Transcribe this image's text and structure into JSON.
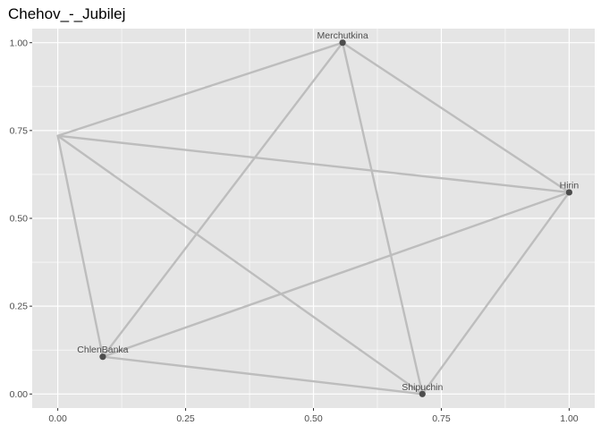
{
  "chart_data": {
    "type": "network",
    "title": "Chehov_-_Jubilej",
    "xlabel": "",
    "ylabel": "",
    "xlim": [
      -0.05,
      1.05
    ],
    "ylim": [
      -0.04,
      1.04
    ],
    "x_ticks": [
      0.0,
      0.25,
      0.5,
      0.75,
      1.0
    ],
    "x_tick_labels": [
      "0.00",
      "0.25",
      "0.50",
      "0.75",
      "1.00"
    ],
    "y_ticks": [
      0.0,
      0.25,
      0.5,
      0.75,
      1.0
    ],
    "y_tick_labels": [
      "0.00",
      "0.25",
      "0.50",
      "0.75",
      "1.00"
    ],
    "grid": true,
    "colors": {
      "panel_background": "#e5e5e5",
      "grid": "#ffffff",
      "edge": "#bdbdbd",
      "node": "#4d4d4d",
      "label": "#4d4d4d",
      "axis_text": "#4d4d4d"
    },
    "nodes": [
      {
        "id": "Merchutkina",
        "label": "Merchutkina",
        "x": 0.557,
        "y": 1.0
      },
      {
        "id": "unlabeled",
        "label": "",
        "x": 0.0,
        "y": 0.735
      },
      {
        "id": "Hirin",
        "label": "Hirin",
        "x": 1.0,
        "y": 0.574
      },
      {
        "id": "ChlenBanka",
        "label": "ChlenBanka",
        "x": 0.088,
        "y": 0.106
      },
      {
        "id": "Shipuchin",
        "label": "Shipuchin",
        "x": 0.713,
        "y": 0.0
      }
    ],
    "edges": [
      [
        "unlabeled",
        "Merchutkina"
      ],
      [
        "unlabeled",
        "Hirin"
      ],
      [
        "unlabeled",
        "ChlenBanka"
      ],
      [
        "unlabeled",
        "Shipuchin"
      ],
      [
        "Merchutkina",
        "Hirin"
      ],
      [
        "Merchutkina",
        "ChlenBanka"
      ],
      [
        "Merchutkina",
        "Shipuchin"
      ],
      [
        "Hirin",
        "ChlenBanka"
      ],
      [
        "Hirin",
        "Shipuchin"
      ],
      [
        "ChlenBanka",
        "Shipuchin"
      ]
    ]
  }
}
